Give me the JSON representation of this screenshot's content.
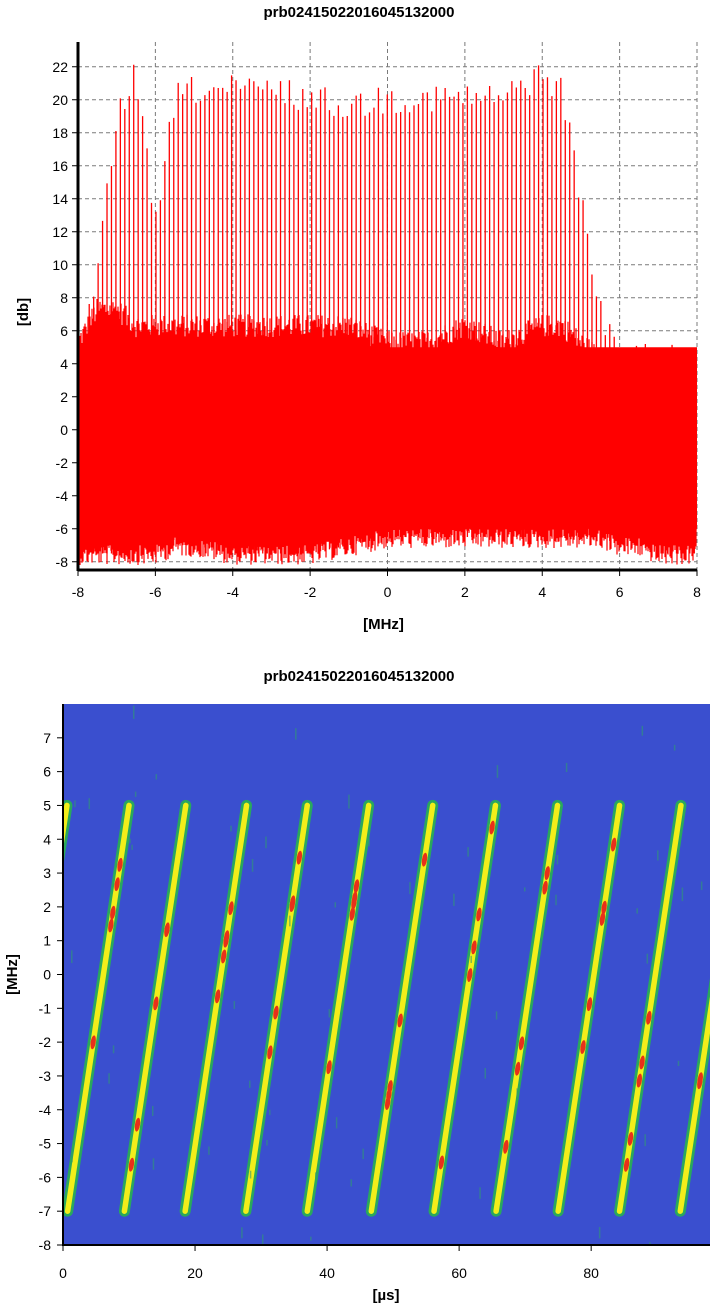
{
  "chart_data": [
    {
      "type": "line",
      "title": "prb02415022016045132000",
      "xlabel": "[MHz]",
      "ylabel": "[db]",
      "xlim": [
        -8,
        8
      ],
      "ylim": [
        -8.5,
        23.5
      ],
      "grid": true,
      "x_ticks": [
        -8,
        -6,
        -4,
        -2,
        0,
        2,
        4,
        6,
        8
      ],
      "y_ticks": [
        -8,
        -6,
        -4,
        -2,
        0,
        2,
        4,
        6,
        8,
        10,
        12,
        14,
        16,
        18,
        20,
        22
      ],
      "series_color": "#ff0000",
      "envelope": {
        "x": [
          -8,
          -7.5,
          -7,
          -6.5,
          -6,
          -5.5,
          -5,
          -4,
          -3,
          -2,
          -1,
          0,
          1,
          2,
          3,
          4,
          4.5,
          5,
          5.5,
          6,
          6.5,
          7,
          7.5,
          8
        ],
        "spike_peak": [
          5,
          10,
          20,
          22.5,
          13,
          21,
          21.5,
          21.5,
          21.5,
          21,
          20.5,
          21,
          21,
          21,
          21,
          22.5,
          21.5,
          15,
          8,
          5,
          5.5,
          5.5,
          5,
          5
        ],
        "noise_upper": [
          5,
          7,
          7,
          6,
          6,
          6,
          6,
          6,
          6,
          6,
          6,
          5,
          5,
          6,
          5,
          6,
          6,
          5,
          4,
          4,
          4,
          4,
          4,
          4
        ],
        "noise_lower": [
          -7,
          -7,
          -7,
          -7,
          -7,
          -6.5,
          -6.5,
          -7,
          -7,
          -7,
          -6.5,
          -6,
          -6,
          -6,
          -6,
          -6,
          -6,
          -6,
          -6,
          -6.5,
          -6.5,
          -7,
          -7,
          -7
        ]
      }
    },
    {
      "type": "heatmap",
      "title": "prb02415022016045132000",
      "xlabel": "[µs]",
      "ylabel": "[MHz]",
      "xlim": [
        0,
        98
      ],
      "ylim": [
        -8,
        8
      ],
      "x_ticks": [
        0,
        20,
        40,
        60,
        80
      ],
      "y_ticks": [
        -8,
        -7,
        -6,
        -5,
        -4,
        -3,
        -2,
        -1,
        0,
        1,
        2,
        3,
        4,
        5,
        6,
        7
      ],
      "background_color": "#3a4fcf",
      "sweep_start_times_us": [
        -8.7,
        0.7,
        9.3,
        18.5,
        27.7,
        37.0,
        46.7,
        56.2,
        65.6,
        75.0,
        84.3,
        93.5
      ],
      "sweep_duration_us": 9.3,
      "sweep_freq_range_MHz": [
        -7,
        5
      ]
    }
  ]
}
